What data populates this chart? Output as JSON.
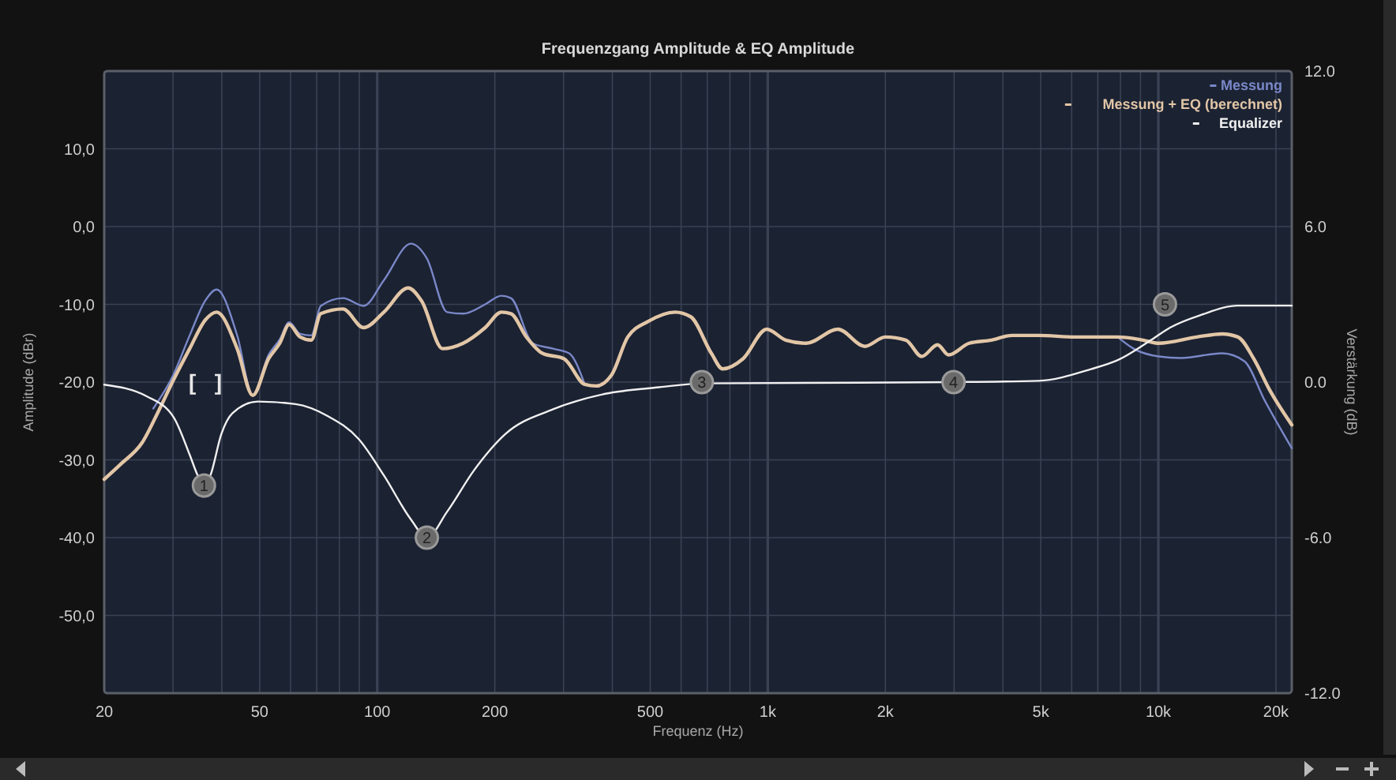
{
  "chart_data": {
    "type": "line",
    "title": "Frequenzgang Amplitude & EQ Amplitude",
    "xlabel": "Frequenz (Hz)",
    "ylabel": "Amplitude (dBr)",
    "y2label": "Verstärkung (dB)",
    "log": "x",
    "grid": true,
    "legend": "top right",
    "xlim": [
      20,
      21960
    ],
    "ylim": [
      -60,
      20
    ],
    "y2lim": [
      -12,
      12
    ],
    "xticks": [
      20,
      {
        "value": 30,
        "label": null
      },
      {
        "value": 40,
        "label": null
      },
      50,
      {
        "value": 60,
        "label": null
      },
      {
        "value": 70,
        "label": null
      },
      {
        "value": 80,
        "label": null
      },
      {
        "value": 90,
        "label": null
      },
      100,
      200,
      {
        "value": 300,
        "label": null
      },
      {
        "value": 400,
        "label": null
      },
      500,
      {
        "value": 600,
        "label": null
      },
      {
        "value": 700,
        "label": null
      },
      {
        "value": 800,
        "label": null
      },
      {
        "value": 900,
        "label": null
      },
      {
        "value": 1000,
        "label": "1k"
      },
      {
        "value": 2000,
        "label": "2k"
      },
      {
        "value": 3000,
        "label": null
      },
      {
        "value": 4000,
        "label": null
      },
      {
        "value": 5000,
        "label": "5k"
      },
      {
        "value": 6000,
        "label": null
      },
      {
        "value": 7000,
        "label": null
      },
      {
        "value": 8000,
        "label": null
      },
      {
        "value": 9000,
        "label": null
      },
      {
        "value": 10000,
        "label": "10k"
      },
      {
        "value": 20000,
        "label": "20k"
      }
    ],
    "yticks": [
      {
        "value": -50,
        "label": "-50,0"
      },
      {
        "value": -40,
        "label": "-40,0"
      },
      {
        "value": -30,
        "label": "-30,0"
      },
      {
        "value": -20,
        "label": "-20,0"
      },
      {
        "value": -10,
        "label": "-10,0"
      },
      {
        "value": 0,
        "label": "0,0"
      },
      {
        "value": 10,
        "label": "10,0"
      }
    ],
    "y2ticks": [
      {
        "value": -12,
        "label": "-12.0"
      },
      {
        "value": -6,
        "label": "-6.0"
      },
      {
        "value": 0,
        "label": "0.0"
      },
      {
        "value": 6,
        "label": "6.0"
      },
      {
        "value": 12,
        "label": "12.0"
      }
    ],
    "series": [
      {
        "name": "Messung",
        "color": "#7a88c8",
        "x": [
          26.7,
          30.1,
          33.1,
          36.3,
          38.8,
          43.8,
          48,
          52.7,
          56.3,
          59.5,
          63.5,
          67.8,
          71.7,
          81.7,
          92.3,
          104,
          122,
          134,
          151,
          166,
          189,
          208,
          220,
          250,
          282,
          310,
          340,
          2000,
          7870,
          8640,
          10020,
          11430,
          14570,
          16600,
          18740,
          21960
        ],
        "values": [
          -23.4,
          -19,
          -14,
          -9.5,
          -8.1,
          -14,
          -21.7,
          -16.5,
          -14.5,
          -12.3,
          -13.8,
          -14,
          -10.2,
          -9.2,
          -10.2,
          -6.9,
          -2.2,
          -4.1,
          -11,
          -11.2,
          -10,
          -8.9,
          -9.2,
          -15,
          -15.7,
          -16.3,
          -20.3,
          null,
          -14.2,
          -15.7,
          -16.7,
          -16.9,
          -16.3,
          -17.3,
          -22.4,
          -28.5
        ]
      },
      {
        "name": "Messung + EQ (berechnet)",
        "color": "#e2c6a6",
        "x": [
          20,
          22.1,
          25,
          27.5,
          30.1,
          33.1,
          36.3,
          38.8,
          43.8,
          48,
          52.7,
          56.3,
          59.5,
          63.5,
          67.8,
          71.7,
          81.7,
          92.3,
          104,
          120,
          130,
          147,
          166,
          189,
          208,
          220,
          241,
          265,
          301,
          340,
          363,
          399,
          438,
          494,
          579,
          635,
          717,
          766,
          864,
          994,
          1112,
          1255,
          1512,
          1772,
          2000,
          2258,
          2478,
          2720,
          2904,
          3278,
          3736,
          4216,
          4940,
          6120,
          7870,
          9140,
          10020,
          12550,
          14570,
          15990,
          17550,
          19270,
          21960
        ],
        "values": [
          -32.5,
          -30.5,
          -27.8,
          -23.8,
          -19.7,
          -15.7,
          -12,
          -11,
          -15.7,
          -21.7,
          -17,
          -15,
          -12.6,
          -14.2,
          -14.6,
          -11.2,
          -10.6,
          -13,
          -11,
          -7.9,
          -9.6,
          -15.7,
          -15,
          -13,
          -11,
          -11.2,
          -14.2,
          -16.3,
          -17,
          -20.3,
          -20.5,
          -19,
          -14.2,
          -12.2,
          -11,
          -11.6,
          -16.3,
          -18.3,
          -17,
          -13.2,
          -14.6,
          -15,
          -13.2,
          -15.4,
          -14.2,
          -14.6,
          -16.7,
          -15.2,
          -16.5,
          -15,
          -14.6,
          -14,
          -14,
          -14.2,
          -14.2,
          -14.6,
          -15,
          -14.2,
          -13.8,
          -14.2,
          -17,
          -21,
          -25.5
        ]
      },
      {
        "name": "Equalizer",
        "color": "#f0f0f0",
        "axis": "y2",
        "x": [
          20,
          25.7,
          30.1,
          33.1,
          34.7,
          36,
          37.4,
          39.9,
          42.6,
          49.4,
          61.8,
          74.5,
          89.7,
          104,
          122,
          134,
          151,
          177,
          213,
          282,
          384,
          527,
          678,
          2986,
          4940,
          6720,
          7870,
          9750,
          10710,
          12910,
          15990,
          21960
        ],
        "values": [
          -0.1,
          -0.55,
          -1.35,
          -2.8,
          -3.6,
          -4,
          -3.6,
          -2,
          -1.2,
          -0.75,
          -0.85,
          -1.3,
          -2.2,
          -3.6,
          -5.3,
          -6,
          -5,
          -3.4,
          -2,
          -1.05,
          -0.45,
          -0.2,
          -0.05,
          0,
          0.05,
          0.5,
          0.85,
          1.7,
          2.1,
          2.6,
          2.95,
          2.95
        ]
      }
    ],
    "annotations": [
      {
        "text": "1",
        "x": 36,
        "y": -33.3
      },
      {
        "text": "2",
        "x": 134,
        "y": -40
      },
      {
        "text": "3",
        "x": 678,
        "y": -20
      },
      {
        "text": "4",
        "x": 2990,
        "y": -20
      },
      {
        "text": "5",
        "x": 10400,
        "y": -10
      },
      "[   ]"
    ]
  }
}
